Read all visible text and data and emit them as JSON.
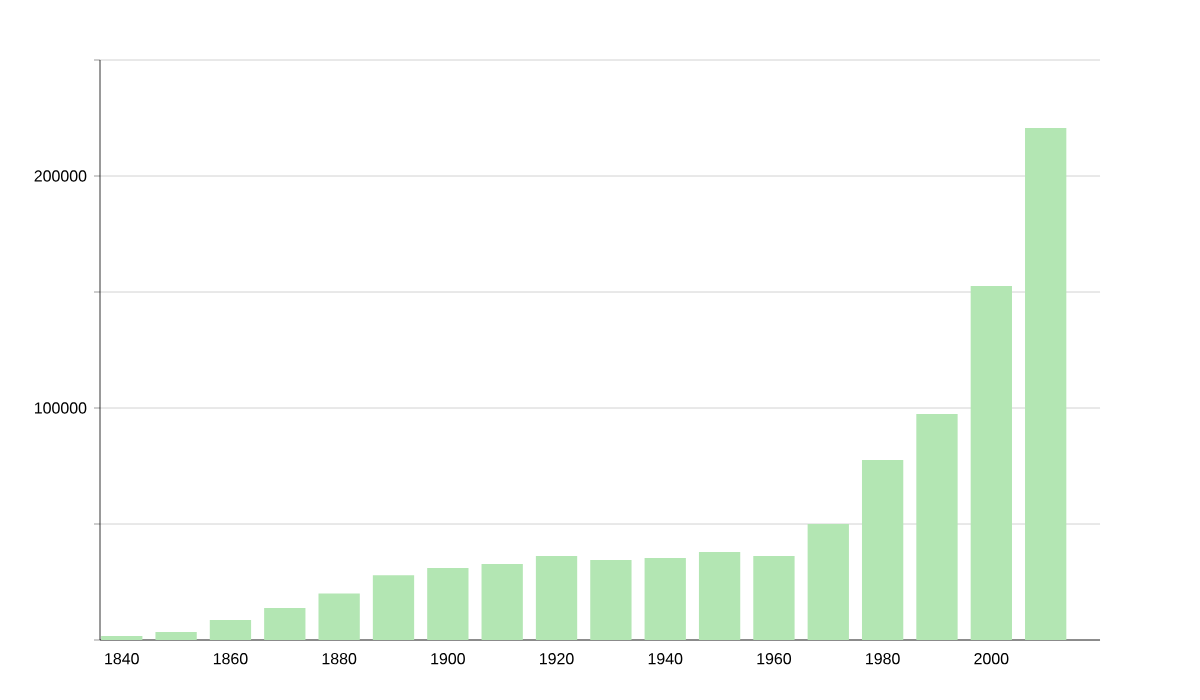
{
  "chart_data": {
    "type": "bar",
    "x": [
      1840,
      1850,
      1860,
      1870,
      1880,
      1890,
      1900,
      1910,
      1920,
      1930,
      1940,
      1950,
      1960,
      1970,
      1980,
      1990,
      2000,
      2010
    ],
    "values": [
      1700,
      3400,
      8600,
      13800,
      20000,
      27900,
      31000,
      32800,
      36200,
      34500,
      35300,
      37900,
      36200,
      50000,
      77600,
      97400,
      152600,
      220700
    ],
    "color": "#b3e6b3",
    "xlim": [
      1836,
      2020
    ],
    "xticks": [
      1840,
      1860,
      1880,
      1900,
      1920,
      1940,
      1960,
      1980,
      2000
    ],
    "ylim": [
      0,
      250000
    ],
    "yticks": [
      {
        "value": 0,
        "label": null
      },
      {
        "value": 50000,
        "label": null
      },
      100000,
      {
        "value": 150000,
        "label": null
      },
      200000,
      {
        "value": 250000,
        "label": null
      }
    ],
    "grid": "y"
  }
}
